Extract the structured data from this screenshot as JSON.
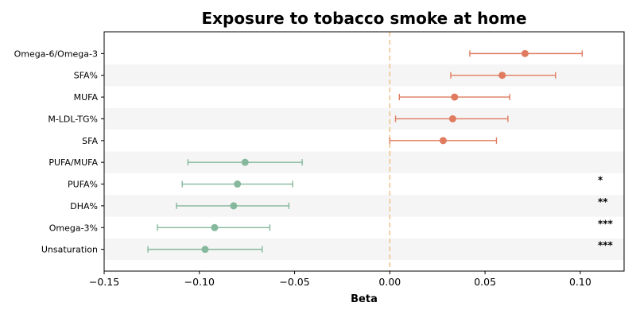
{
  "chart_data": {
    "type": "forest",
    "title": "Exposure to tobacco smoke at home",
    "xlabel": "Beta",
    "xlim": [
      -0.15,
      0.123
    ],
    "xticks": [
      -0.15,
      -0.1,
      -0.05,
      0.0,
      0.05,
      0.1
    ],
    "xtick_labels": [
      "−0.15",
      "−0.10",
      "−0.05",
      "0.00",
      "0.05",
      "0.10"
    ],
    "reference_line": 0,
    "colors": {
      "positive": "#e07b5f",
      "negative": "#85b89c",
      "reference": "#f2c08a",
      "stripe": "#f5f5f5"
    },
    "rows": [
      {
        "label": "Omega-6/Omega-3",
        "beta": 0.071,
        "lower": 0.042,
        "upper": 0.101,
        "sig": ""
      },
      {
        "label": "SFA%",
        "beta": 0.059,
        "lower": 0.032,
        "upper": 0.087,
        "sig": ""
      },
      {
        "label": "MUFA",
        "beta": 0.034,
        "lower": 0.005,
        "upper": 0.063,
        "sig": ""
      },
      {
        "label": "M-LDL-TG%",
        "beta": 0.033,
        "lower": 0.003,
        "upper": 0.062,
        "sig": ""
      },
      {
        "label": "SFA",
        "beta": 0.028,
        "lower": 0.0,
        "upper": 0.056,
        "sig": ""
      },
      {
        "label": "PUFA/MUFA",
        "beta": -0.076,
        "lower": -0.106,
        "upper": -0.046,
        "sig": ""
      },
      {
        "label": "PUFA%",
        "beta": -0.08,
        "lower": -0.109,
        "upper": -0.051,
        "sig": "*"
      },
      {
        "label": "DHA%",
        "beta": -0.082,
        "lower": -0.112,
        "upper": -0.053,
        "sig": "**"
      },
      {
        "label": "Omega-3%",
        "beta": -0.092,
        "lower": -0.122,
        "upper": -0.063,
        "sig": "***"
      },
      {
        "label": "Unsaturation",
        "beta": -0.097,
        "lower": -0.127,
        "upper": -0.067,
        "sig": "***"
      }
    ]
  }
}
